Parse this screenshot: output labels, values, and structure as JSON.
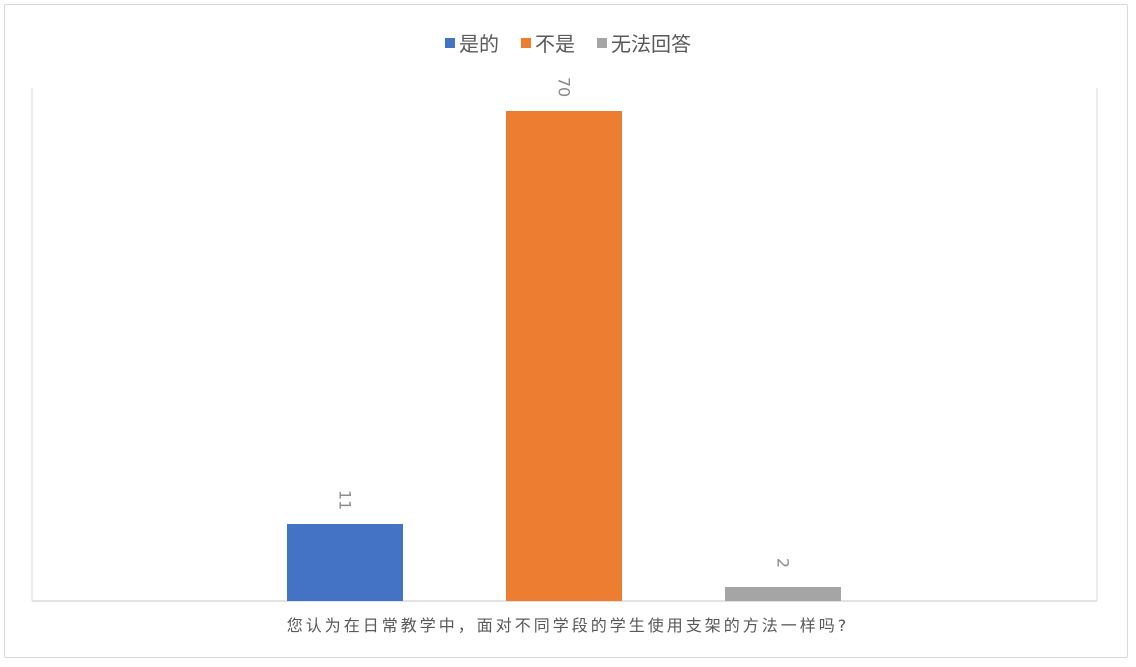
{
  "chart_data": {
    "type": "bar",
    "categories": [
      ""
    ],
    "series": [
      {
        "name": "是的",
        "values": [
          11
        ],
        "color": "#4472c4"
      },
      {
        "name": "不是",
        "values": [
          70
        ],
        "color": "#ed7d31"
      },
      {
        "name": "无法回答",
        "values": [
          2
        ],
        "color": "#a5a5a5"
      }
    ],
    "title": "",
    "xlabel": "您认为在日常教学中，面对不同学段的学生使用支架的方法一样吗?",
    "ylabel": "",
    "ylim": [
      0,
      80
    ],
    "grid": false,
    "legend_position": "top",
    "data_labels": true,
    "data_label_rotation": "vertical"
  }
}
